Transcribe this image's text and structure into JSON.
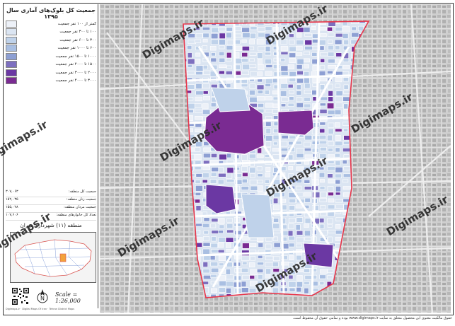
{
  "map": {
    "title": "جمعیت کل بلوک‌های آماری سال ۱۳۹۵",
    "district_label": "منطقه (۱۱) شهرداری تهران",
    "scale_label": "Scale = 1:26,000",
    "north_label": "N",
    "footer_text": "حقوق مالکیت معنوی این محصول متعلق به سایت www.digimaps.ir بوده و تمامی حقوق آن محفوظ است.",
    "watermark": "Digimaps.ir",
    "legend_classes": [
      {
        "label": "کمتر از ۱۰۰ نفر جمعیت",
        "color": "#edf1f8"
      },
      {
        "label": "۱۰۰ تا ۳۰۰ نفر جمعیت",
        "color": "#dbe5f2"
      },
      {
        "label": "۳۰۰ تا ۶۰۰ نفر جمعیت",
        "color": "#bfd2ea"
      },
      {
        "label": "۶۰۰ تا ۱۰۰۰ نفر جمعیت",
        "color": "#a9bfe2"
      },
      {
        "label": "۱۰۰۰ تا ۱۵۰۰ نفر جمعیت",
        "color": "#8d9fd3"
      },
      {
        "label": "۱۵۰۰ تا ۲۰۰۰ نفر جمعیت",
        "color": "#7d6fbf"
      },
      {
        "label": "۲۰۰۰ تا ۳۰۰۰ نفر جمعیت",
        "color": "#6b38a3"
      },
      {
        "label": "۳۰۰۰ تا ۴۰۰۰ نفر جمعیت",
        "color": "#7a2b92"
      }
    ],
    "stats": [
      {
        "label": "جمعیت کل منطقه:",
        "value": "۳۰۷,۰۶۳"
      },
      {
        "label": "جمعیت زنان منطقه:",
        "value": "۱۵۲,۰۳۵"
      },
      {
        "label": "جمعیت مردان منطقه:",
        "value": "۱۵۵,۰۲۸"
      },
      {
        "label": "تعداد کل خانوارهای منطقه:",
        "value": "۱۰۷,۶۰۶"
      }
    ],
    "legend_footer": "Digimaps.ir · Digital Maps Of Iran · Tehran District Maps"
  }
}
